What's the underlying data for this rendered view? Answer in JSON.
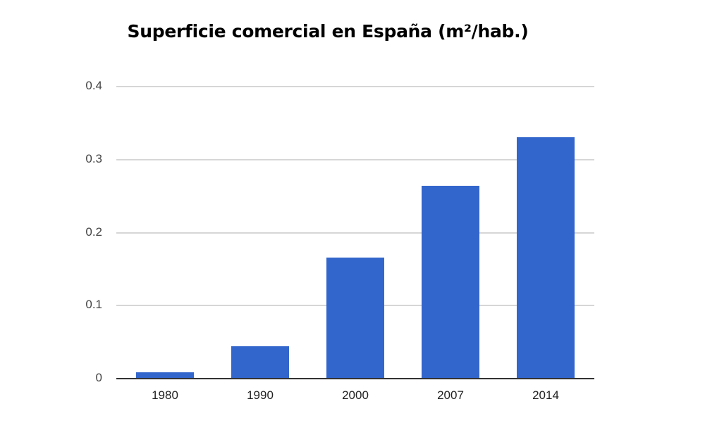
{
  "title": "Superficie comercial en España (m²/hab.)",
  "colors": {
    "bar": "#3366cc",
    "grid": "#d6d6d6",
    "axis": "#333333"
  },
  "chart_data": {
    "type": "bar",
    "title": "Superficie comercial en España (m²/hab.)",
    "xlabel": "",
    "ylabel": "",
    "categories": [
      "1980",
      "1990",
      "2000",
      "2007",
      "2014"
    ],
    "values": [
      0.009,
      0.044,
      0.166,
      0.264,
      0.331
    ],
    "ylim": [
      0,
      0.4
    ],
    "yticks": [
      "0",
      "0.1",
      "0.2",
      "0.3",
      "0.4"
    ],
    "grid": true,
    "legend": "none"
  }
}
